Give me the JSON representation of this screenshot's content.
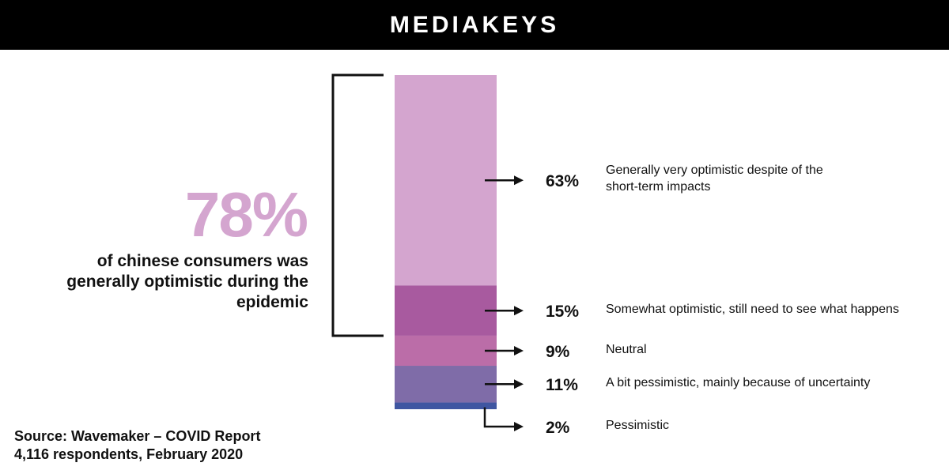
{
  "header": {
    "brand": "MEDIAKEYS"
  },
  "headline": {
    "percent": "78%",
    "text": "of chinese consumers was generally optimistic during the epidemic"
  },
  "source": {
    "line1": "Source: Wavemaker – COVID Report",
    "line2": "4,116 respondents, February 2020"
  },
  "colors": {
    "header_bg": "#000000",
    "accent": "#d4a5cf"
  },
  "chart_data": {
    "type": "bar",
    "stacked": true,
    "orientation": "vertical-single-column",
    "unit": "%",
    "segments": [
      {
        "value": 63,
        "label": "63%",
        "description": "Generally very optimistic despite of the short-term impacts",
        "color": "#d4a5cf"
      },
      {
        "value": 15,
        "label": "15%",
        "description": "Somewhat optimistic, still need to see what happens",
        "color": "#a85a9f"
      },
      {
        "value": 9,
        "label": "9%",
        "description": "Neutral",
        "color": "#bb6da8"
      },
      {
        "value": 11,
        "label": "11%",
        "description": "A bit pessimistic, mainly because of uncertainty",
        "color": "#7f6ca8"
      },
      {
        "value": 2,
        "label": "2%",
        "description": "Pessimistic",
        "color": "#3f56a1"
      }
    ],
    "bracket_groups": [
      {
        "from": 0,
        "to": 1,
        "total": 78
      }
    ]
  }
}
